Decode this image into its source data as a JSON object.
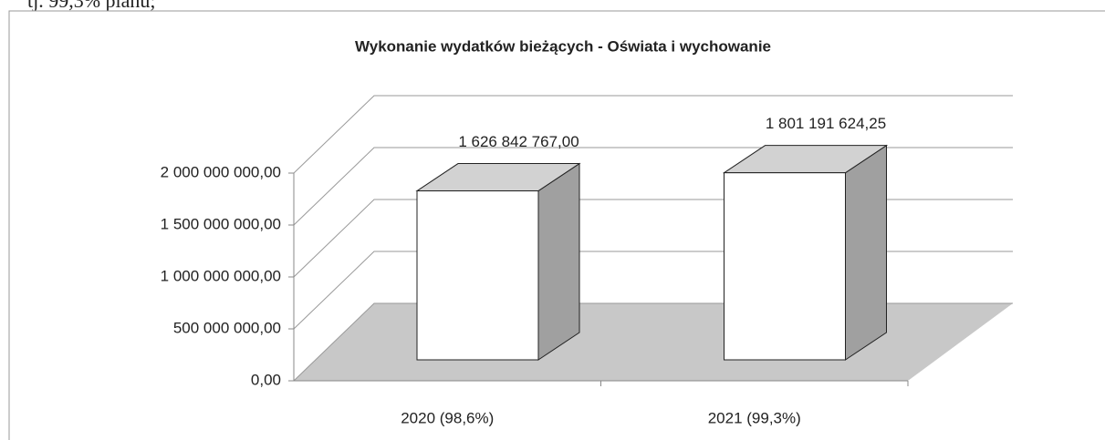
{
  "text_above": "tj. 99,3% planu;",
  "chart_data": {
    "type": "bar3d",
    "title": "Wykonanie wydatków bieżących - Oświata i wychowanie",
    "categories": [
      "2020 (98,6%)",
      "2021 (99,3%)"
    ],
    "values": [
      1626842767.0,
      1801191624.25
    ],
    "value_labels": [
      "1 626 842 767,00",
      "1 801 191 624,25"
    ],
    "color": "#ffffff",
    "ylim": [
      0,
      2000000000
    ],
    "yticks": [
      {
        "value": 0,
        "label": "0,00"
      },
      {
        "value": 500000000,
        "label": "500 000 000,00"
      },
      {
        "value": 1000000000,
        "label": "1 000 000 000,00"
      },
      {
        "value": 1500000000,
        "label": "1 500 000 000,00"
      },
      {
        "value": 2000000000,
        "label": "2 000 000 000,00"
      }
    ],
    "grid": true
  }
}
